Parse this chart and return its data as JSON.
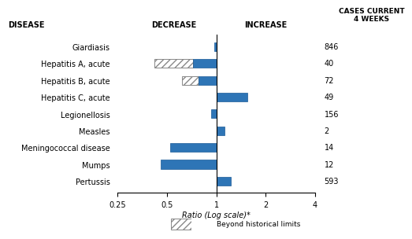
{
  "diseases": [
    "Giardiasis",
    "Hepatitis A, acute",
    "Hepatitis B, acute",
    "Hepatitis C, acute",
    "Legionellosis",
    "Measles",
    "Meningococcal disease",
    "Mumps",
    "Pertussis"
  ],
  "cases": [
    846,
    40,
    72,
    49,
    156,
    2,
    14,
    12,
    593
  ],
  "ratios": [
    0.97,
    0.72,
    0.78,
    1.55,
    0.93,
    1.12,
    0.52,
    0.46,
    1.23
  ],
  "beyond_limits": [
    false,
    true,
    true,
    false,
    false,
    false,
    false,
    false,
    false
  ],
  "beyond_limit_ratios": [
    null,
    0.42,
    0.62,
    null,
    null,
    null,
    null,
    null,
    null
  ],
  "bar_color": "#2E75B6",
  "title_disease": "DISEASE",
  "title_decrease": "DECREASE",
  "title_increase": "INCREASE",
  "title_cases": "CASES CURRENT\n4 WEEKS",
  "xlabel": "Ratio (Log scale)*",
  "legend_label": "Beyond historical limits",
  "xmin": 0.25,
  "xmax": 4.0,
  "xticks": [
    0.25,
    0.5,
    1.0,
    2.0,
    4.0
  ],
  "xtick_labels": [
    "0.25",
    "0.5",
    "1",
    "2",
    "4"
  ]
}
